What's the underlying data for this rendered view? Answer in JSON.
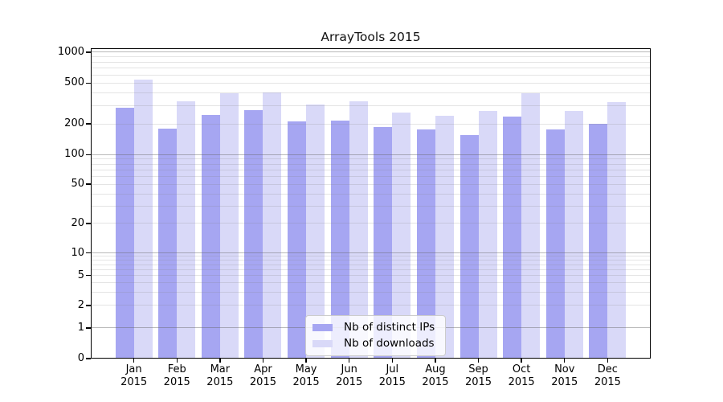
{
  "title": "ArrayTools 2015",
  "colors": {
    "distinct_ips": "#a6a6f2",
    "downloads": "#d9d9f8",
    "grid_major": "#b9b9b9",
    "grid_minor": "#dedede",
    "axis": "#000000",
    "background": "#ffffff"
  },
  "legend": {
    "position": "lower center",
    "items": [
      {
        "label": "Nb of distinct IPs",
        "series": "distinct_ips"
      },
      {
        "label": "Nb of downloads",
        "series": "downloads"
      }
    ]
  },
  "chart_data": {
    "type": "bar",
    "title": "ArrayTools 2015",
    "months": [
      "Jan",
      "Feb",
      "Mar",
      "Apr",
      "May",
      "Jun",
      "Jul",
      "Aug",
      "Sep",
      "Oct",
      "Nov",
      "Dec"
    ],
    "year": "2015",
    "categories": [
      "Jan 2015",
      "Feb 2015",
      "Mar 2015",
      "Apr 2015",
      "May 2015",
      "Jun 2015",
      "Jul 2015",
      "Aug 2015",
      "Sep 2015",
      "Oct 2015",
      "Nov 2015",
      "Dec 2015"
    ],
    "series": [
      {
        "name": "Nb of distinct IPs",
        "color": "#a6a6f2",
        "values": [
          285,
          180,
          245,
          270,
          210,
          215,
          185,
          175,
          155,
          235,
          175,
          200
        ]
      },
      {
        "name": "Nb of downloads",
        "color": "#d9d9f8",
        "values": [
          540,
          330,
          395,
          405,
          310,
          330,
          260,
          240,
          265,
          400,
          265,
          325
        ]
      }
    ],
    "xlabel": "",
    "ylabel": "",
    "yscale": "symlog",
    "yticks": [
      0,
      1,
      2,
      5,
      10,
      20,
      50,
      100,
      200,
      500,
      1000
    ],
    "ylim": [
      0,
      1100
    ],
    "grid": true,
    "legend_position": "lower center"
  }
}
